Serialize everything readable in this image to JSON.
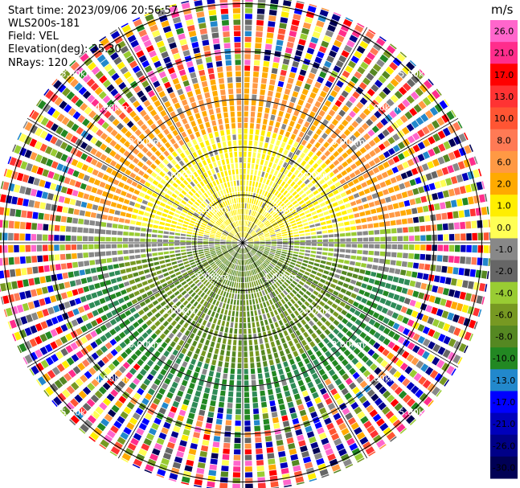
{
  "header": {
    "start_time": "Start time: 2023/09/06 20:56:57",
    "site": "WLS200s-181",
    "field": "Field: VEL",
    "elevation": "Elevation(deg): 35.30",
    "nrays": "NRays: 120"
  },
  "chart_data": {
    "type": "heatmap",
    "projection": "polar-ppi",
    "rays": 120,
    "range_rings_km": [
      1.0,
      2.0,
      3.0,
      4.0,
      5.0
    ],
    "ring_labels": [
      "1.00km",
      "2.00km",
      "3.00km",
      "4.00km",
      "5.00km"
    ],
    "max_range_km": 5.2,
    "grid": true,
    "radial_lines_every_deg": 30,
    "colorbar": {
      "unit": "m/s",
      "ticks": [
        "26.0",
        "21.0",
        "17.0",
        "13.0",
        "10.0",
        "8.0",
        "6.0",
        "2.0",
        "1.0",
        "0.0",
        "-1.0",
        "-2.0",
        "-4.0",
        "-6.0",
        "-8.0",
        "-10.0",
        "-13.0",
        "-17.0",
        "-21.0",
        "-26.0",
        "-30.0"
      ],
      "colors": [
        "#ff66cc",
        "#ff2d8c",
        "#ff0000",
        "#ff3333",
        "#ff5533",
        "#ff7a55",
        "#ff9944",
        "#ffaa00",
        "#ffee00",
        "#ffff55",
        "#888888",
        "#666666",
        "#99cc33",
        "#779922",
        "#558822",
        "#228822",
        "#2288cc",
        "#0000ff",
        "#0000bb",
        "#000088",
        "#000055"
      ],
      "legend_position": "right"
    }
  }
}
